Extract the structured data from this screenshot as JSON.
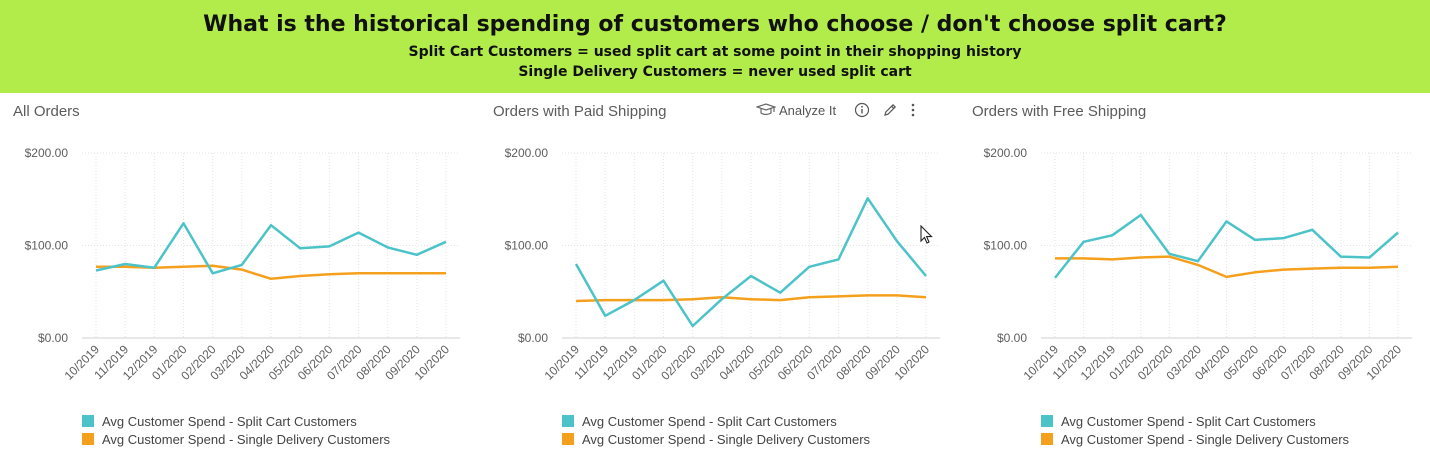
{
  "header": {
    "title": "What is the historical spending of customers who choose / don't choose split cart?",
    "subtitle1": "Split Cart Customers = used split cart at some point in their shopping history",
    "subtitle2": "Single Delivery Customers = never used split cart"
  },
  "toolbar": {
    "analyze_label": "Analyze It",
    "analyze_icon": "graduation-cap-icon",
    "info_icon": "info-icon",
    "edit_icon": "pencil-icon",
    "more_icon": "more-vertical-icon"
  },
  "colors": {
    "banner": "#b2ec4a",
    "split": "#4bc3c9",
    "single": "#f5a01d"
  },
  "chart_data": [
    {
      "type": "line",
      "title": "All Orders",
      "categories": [
        "10/2019",
        "11/2019",
        "12/2019",
        "01/2020",
        "02/2020",
        "03/2020",
        "04/2020",
        "05/2020",
        "06/2020",
        "07/2020",
        "08/2020",
        "09/2020",
        "10/2020"
      ],
      "yticks": [
        "$0.00",
        "$100.00",
        "$200.00"
      ],
      "ylim": [
        0,
        200
      ],
      "grid": true,
      "legend_position": "bottom-left",
      "series": [
        {
          "name": "Avg Customer Spend - Split Cart Customers",
          "values": [
            73,
            80,
            76,
            124,
            70,
            79,
            122,
            97,
            99,
            114,
            98,
            90,
            104
          ]
        },
        {
          "name": "Avg Customer Spend - Single Delivery Customers",
          "values": [
            77,
            77,
            76,
            77,
            78,
            74,
            64,
            67,
            69,
            70,
            70,
            70,
            70
          ]
        }
      ]
    },
    {
      "type": "line",
      "title": "Orders with Paid Shipping",
      "categories": [
        "10/2019",
        "11/2019",
        "12/2019",
        "01/2020",
        "02/2020",
        "03/2020",
        "04/2020",
        "05/2020",
        "06/2020",
        "07/2020",
        "08/2020",
        "09/2020",
        "10/2020"
      ],
      "yticks": [
        "$0.00",
        "$100.00",
        "$200.00"
      ],
      "ylim": [
        0,
        200
      ],
      "grid": true,
      "legend_position": "bottom-left",
      "series": [
        {
          "name": "Avg Customer Spend - Split Cart Customers",
          "values": [
            80,
            24,
            41,
            62,
            13,
            42,
            67,
            49,
            77,
            85,
            151,
            105,
            67
          ]
        },
        {
          "name": "Avg Customer Spend - Single Delivery Customers",
          "values": [
            40,
            41,
            41,
            41,
            42,
            44,
            42,
            41,
            44,
            45,
            46,
            46,
            44
          ]
        }
      ]
    },
    {
      "type": "line",
      "title": "Orders with Free Shipping",
      "categories": [
        "10/2019",
        "11/2019",
        "12/2019",
        "01/2020",
        "02/2020",
        "03/2020",
        "04/2020",
        "05/2020",
        "06/2020",
        "07/2020",
        "08/2020",
        "09/2020",
        "10/2020"
      ],
      "yticks": [
        "$0.00",
        "$100.00",
        "$200.00"
      ],
      "ylim": [
        0,
        200
      ],
      "grid": true,
      "legend_position": "bottom-left",
      "series": [
        {
          "name": "Avg Customer Spend - Split Cart Customers",
          "values": [
            65,
            104,
            111,
            133,
            91,
            83,
            126,
            106,
            108,
            117,
            88,
            87,
            114
          ]
        },
        {
          "name": "Avg Customer Spend - Single Delivery Customers",
          "values": [
            86,
            86,
            85,
            87,
            88,
            79,
            66,
            71,
            74,
            75,
            76,
            76,
            77
          ]
        }
      ]
    }
  ]
}
